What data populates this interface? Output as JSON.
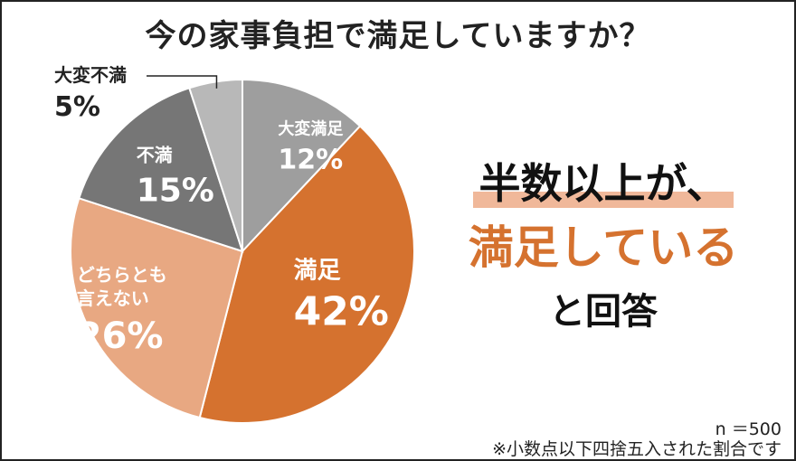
{
  "chart_data": {
    "type": "pie",
    "title": "今の家事負担で満足していますか？",
    "slices": [
      {
        "label": "大変満足",
        "value": 12,
        "value_label": "12%",
        "color": "#9e9e9e",
        "text_color": "#ffffff"
      },
      {
        "label": "満足",
        "value": 42,
        "value_label": "42%",
        "color": "#d5722f",
        "text_color": "#ffffff"
      },
      {
        "label": "どちらとも言えない",
        "label_lines": [
          "どちらとも",
          "言えない"
        ],
        "value": 26,
        "value_label": "26%",
        "color": "#e8a882",
        "text_color": "#ffffff"
      },
      {
        "label": "不満",
        "value": 15,
        "value_label": "15%",
        "color": "#767676",
        "text_color": "#ffffff"
      },
      {
        "label": "大変不満",
        "value": 5,
        "value_label": "5%",
        "color": "#b8b8b8",
        "text_color": "#222222"
      }
    ],
    "start": "top",
    "direction": "clockwise",
    "legend": "none"
  },
  "headline": {
    "line1": "半数以上が、",
    "line2": "満足している",
    "line3": "と回答"
  },
  "notes": {
    "sample": "n ＝500",
    "rounding": "※小数点以下四捨五入された割合です"
  },
  "colors": {
    "accent": "#d5722f",
    "highlight": "#f0b89a",
    "text": "#111111"
  }
}
